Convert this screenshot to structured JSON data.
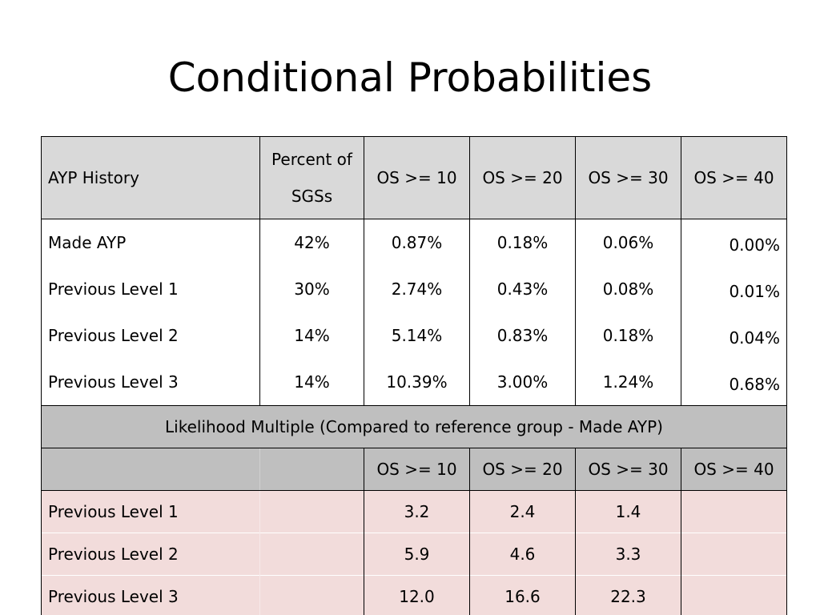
{
  "slide": {
    "title": "Conditional Probabilities"
  },
  "table": {
    "header": {
      "col0": "AYP History",
      "col1": "Percent of SGSs",
      "col2": "OS >= 10",
      "col3": "OS >= 20",
      "col4": "OS >= 30",
      "col5": "OS >= 40"
    },
    "rows": [
      {
        "label": "Made AYP",
        "pct": "42%",
        "os10": "0.87%",
        "os20": "0.18%",
        "os30": "0.06%",
        "os40": "0.00%"
      },
      {
        "label": "Previous Level 1",
        "pct": "30%",
        "os10": "2.74%",
        "os20": "0.43%",
        "os30": "0.08%",
        "os40": "0.01%"
      },
      {
        "label": "Previous Level 2",
        "pct": "14%",
        "os10": "5.14%",
        "os20": "0.83%",
        "os30": "0.18%",
        "os40": "0.04%"
      },
      {
        "label": "Previous  Level 3",
        "pct": "14%",
        "os10": "10.39%",
        "os20": "3.00%",
        "os30": "1.24%",
        "os40": "0.68%"
      }
    ],
    "likelihood_banner": "Likelihood Multiple (Compared to reference group - Made AYP)",
    "likelihood_header": {
      "col0": "",
      "col1": "",
      "col2": "OS >= 10",
      "col3": "OS >= 20",
      "col4": "OS >= 30",
      "col5": "OS >= 40"
    },
    "likelihood_rows": [
      {
        "label": "Previous  Level 1",
        "pct": "",
        "os10": "3.2",
        "os20": "2.4",
        "os30": "1.4",
        "os40": ""
      },
      {
        "label": "Previous  Level 2",
        "pct": "",
        "os10": "5.9",
        "os20": "4.6",
        "os30": "3.3",
        "os40": ""
      },
      {
        "label": "Previous  Level 3",
        "pct": "",
        "os10": "12.0",
        "os20": "16.6",
        "os30": "22.3",
        "os40": ""
      }
    ]
  },
  "colors": {
    "header_gray": "#d9d9d9",
    "banner_gray": "#bfbfbf",
    "pink": "#f2dcdb"
  }
}
